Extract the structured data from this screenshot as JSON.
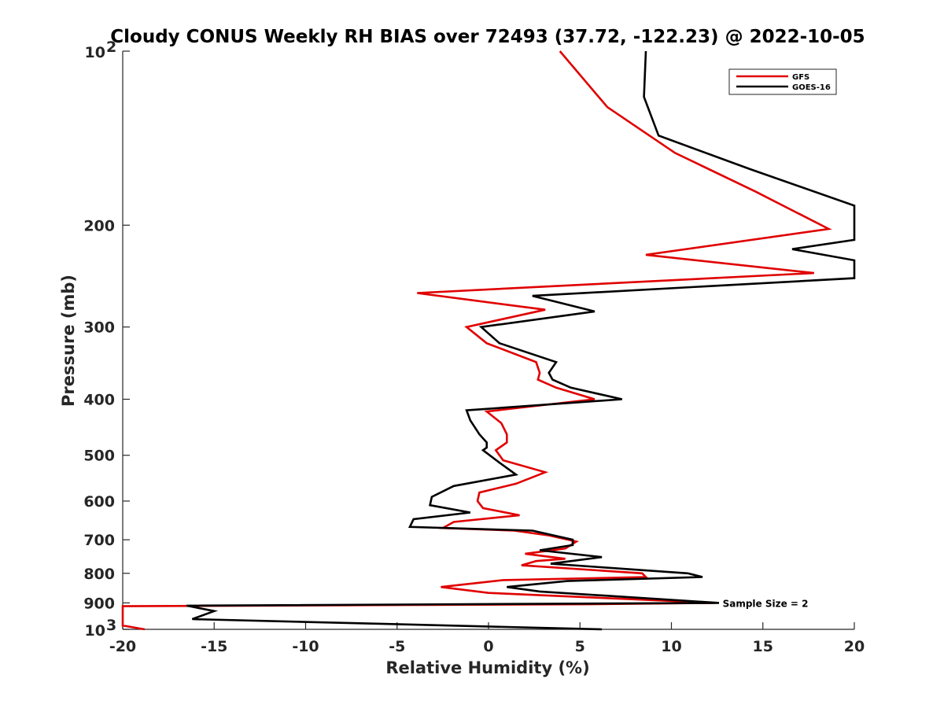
{
  "chart_data": {
    "type": "line",
    "title": "Cloudy CONUS Weekly RH BIAS over 72493 (37.72, -122.23) @ 2022-10-05",
    "xlabel": "Relative Humidity (%)",
    "ylabel": "Pressure (mb)",
    "xlim": [
      -20,
      20
    ],
    "ylim": [
      100,
      1000
    ],
    "y_scale": "log",
    "y_reversed": true,
    "grid": false,
    "legend_position": "top-right",
    "x_ticks": [
      "-20",
      "-15",
      "-10",
      "-5",
      "0",
      "5",
      "10",
      "15",
      "20"
    ],
    "y_ticks": [
      {
        "value": 100,
        "base": "10",
        "exp": "2"
      },
      {
        "value": 200,
        "label": "200"
      },
      {
        "value": 300,
        "label": "300"
      },
      {
        "value": 400,
        "label": "400"
      },
      {
        "value": 500,
        "label": "500"
      },
      {
        "value": 600,
        "label": "600"
      },
      {
        "value": 700,
        "label": "700"
      },
      {
        "value": 800,
        "label": "800"
      },
      {
        "value": 900,
        "label": "900"
      },
      {
        "value": 1000,
        "base": "10",
        "exp": "3"
      }
    ],
    "annotation": {
      "text": "Sample Size = 2",
      "x": 12.8,
      "y": 900
    },
    "series": [
      {
        "name": "GFS",
        "color": "#e00000",
        "points": [
          [
            3.9,
            100
          ],
          [
            6.5,
            125
          ],
          [
            10.2,
            150
          ],
          [
            14.6,
            175
          ],
          [
            18.6,
            203
          ],
          [
            8.6,
            225
          ],
          [
            17.8,
            242
          ],
          [
            -3.9,
            262
          ],
          [
            3.1,
            280
          ],
          [
            -1.2,
            300
          ],
          [
            -0.1,
            320
          ],
          [
            2.6,
            345
          ],
          [
            2.8,
            360
          ],
          [
            2.7,
            370
          ],
          [
            3.7,
            382
          ],
          [
            5.8,
            400
          ],
          [
            -0.1,
            420
          ],
          [
            0.7,
            440
          ],
          [
            1.0,
            460
          ],
          [
            1.0,
            475
          ],
          [
            0.4,
            490
          ],
          [
            0.8,
            510
          ],
          [
            3.1,
            535
          ],
          [
            1.5,
            560
          ],
          [
            -0.5,
            580
          ],
          [
            -0.6,
            600
          ],
          [
            -0.3,
            617
          ],
          [
            1.7,
            635
          ],
          [
            -1.9,
            652
          ],
          [
            -2.5,
            668
          ],
          [
            1.4,
            675
          ],
          [
            3.3,
            688
          ],
          [
            4.8,
            705
          ],
          [
            4.2,
            725
          ],
          [
            2.0,
            740
          ],
          [
            4.2,
            755
          ],
          [
            2.6,
            762
          ],
          [
            1.8,
            775
          ],
          [
            8.4,
            800
          ],
          [
            8.6,
            812
          ],
          [
            0.8,
            822
          ],
          [
            -2.6,
            845
          ],
          [
            0.0,
            865
          ],
          [
            12.4,
            900
          ],
          [
            5.5,
            905
          ],
          [
            -20,
            912
          ],
          [
            -20,
            985
          ],
          [
            -18.8,
            1000
          ]
        ]
      },
      {
        "name": "GOES-16",
        "color": "#000000",
        "points": [
          [
            8.6,
            100
          ],
          [
            8.5,
            120
          ],
          [
            9.3,
            140
          ],
          [
            14.3,
            160
          ],
          [
            20,
            185
          ],
          [
            20,
            212
          ],
          [
            16.6,
            220
          ],
          [
            20,
            230
          ],
          [
            20,
            247
          ],
          [
            2.4,
            265
          ],
          [
            5.8,
            282
          ],
          [
            -0.4,
            300
          ],
          [
            0.6,
            320
          ],
          [
            3.7,
            345
          ],
          [
            3.3,
            360
          ],
          [
            3.5,
            370
          ],
          [
            4.5,
            382
          ],
          [
            7.3,
            400
          ],
          [
            -1.2,
            418
          ],
          [
            -1.0,
            435
          ],
          [
            -0.5,
            460
          ],
          [
            -0.1,
            475
          ],
          [
            -0.1,
            485
          ],
          [
            -0.3,
            490
          ],
          [
            0.6,
            515
          ],
          [
            1.5,
            540
          ],
          [
            -1.9,
            565
          ],
          [
            -3.1,
            590
          ],
          [
            -3.2,
            610
          ],
          [
            -1.0,
            628
          ],
          [
            -4.1,
            645
          ],
          [
            -4.3,
            665
          ],
          [
            2.4,
            675
          ],
          [
            4.6,
            700
          ],
          [
            4.6,
            715
          ],
          [
            2.8,
            730
          ],
          [
            6.2,
            750
          ],
          [
            3.4,
            770
          ],
          [
            10.9,
            800
          ],
          [
            11.7,
            812
          ],
          [
            4.3,
            825
          ],
          [
            1.0,
            845
          ],
          [
            2.8,
            860
          ],
          [
            12.6,
            900
          ],
          [
            -16.5,
            910
          ],
          [
            -15.0,
            930
          ],
          [
            -16.2,
            960
          ],
          [
            6.2,
            1000
          ]
        ]
      }
    ]
  }
}
